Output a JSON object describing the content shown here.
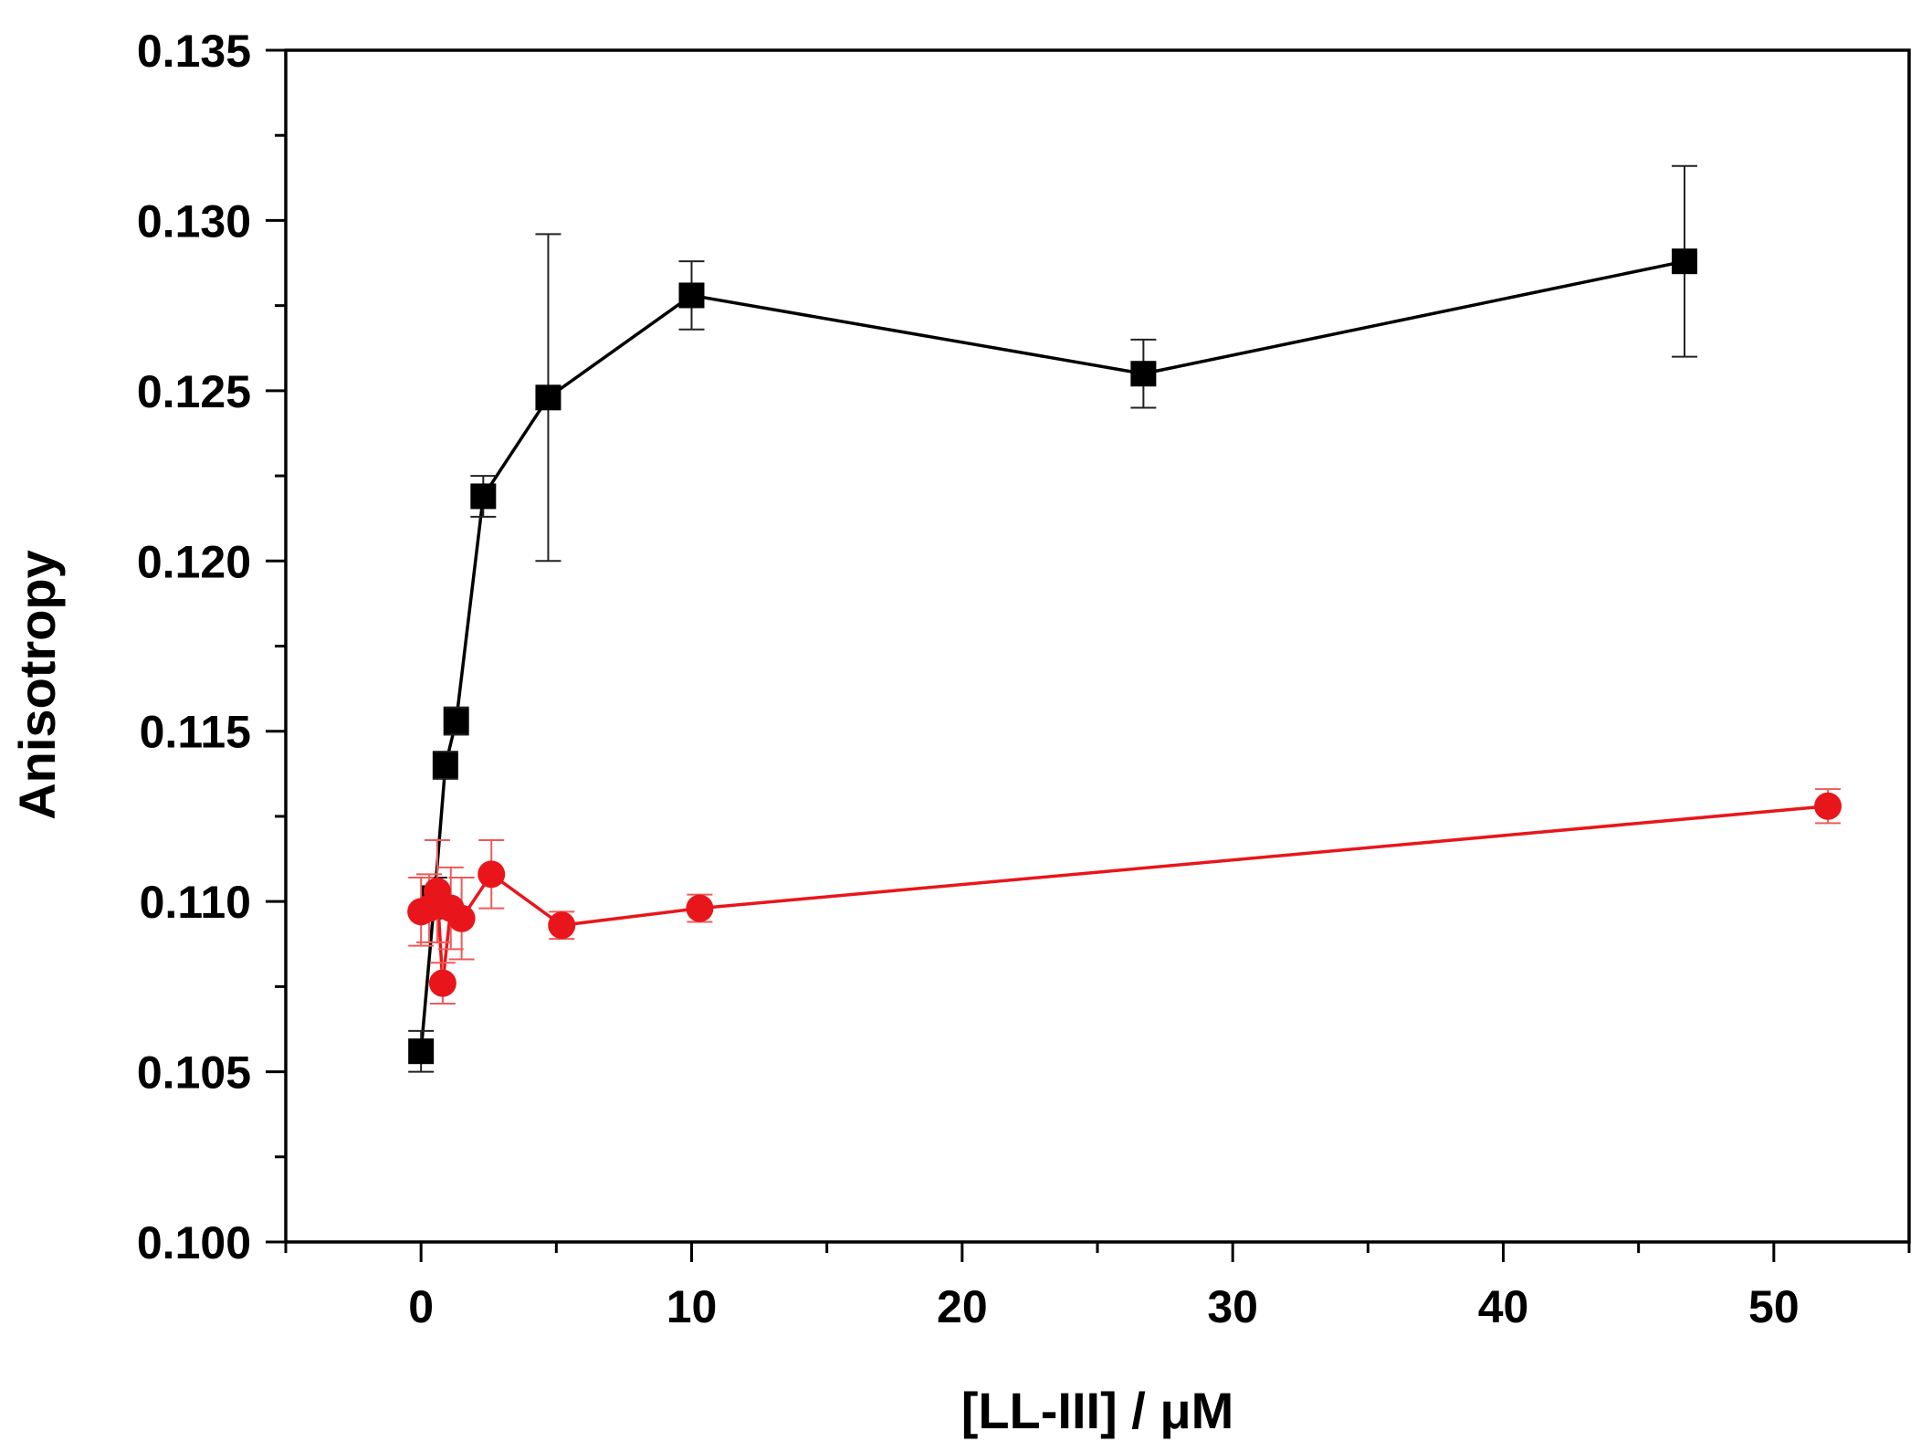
{
  "chart_data": {
    "type": "line",
    "title": "",
    "xlabel": "[LL-III] / μM",
    "ylabel": "Anisotropy",
    "xlim": [
      -5,
      55
    ],
    "ylim": [
      0.1,
      0.135
    ],
    "x_ticks": [
      0,
      10,
      20,
      30,
      40,
      50
    ],
    "x_tick_labels": [
      "0",
      "10",
      "20",
      "30",
      "40",
      "50"
    ],
    "x_minor_step": 5,
    "y_ticks": [
      0.1,
      0.105,
      0.11,
      0.115,
      0.12,
      0.125,
      0.13,
      0.135
    ],
    "y_tick_labels": [
      "0.100",
      "0.105",
      "0.110",
      "0.115",
      "0.120",
      "0.125",
      "0.130",
      "0.135"
    ],
    "y_minor_step": 0.0025,
    "grid": false,
    "legend": null,
    "series": [
      {
        "name": "black squares",
        "color": "#000000",
        "marker": "square",
        "x": [
          0,
          0.5,
          0.9,
          1.3,
          2.3,
          4.7,
          10.0,
          26.7,
          46.7
        ],
        "y": [
          0.1056,
          0.1101,
          0.114,
          0.1153,
          0.1219,
          0.1248,
          0.1278,
          0.1255,
          0.1288
        ],
        "err": [
          0.0006,
          0.0006,
          0.0004,
          0.0004,
          0.0006,
          0.0048,
          0.001,
          0.001,
          0.0028
        ]
      },
      {
        "name": "red circles",
        "color": "#e8161b",
        "marker": "circle",
        "x": [
          0,
          0.3,
          0.6,
          0.8,
          1.1,
          1.5,
          2.6,
          5.2,
          10.3,
          52.0
        ],
        "y": [
          0.1097,
          0.1098,
          0.1103,
          0.1076,
          0.1098,
          0.1095,
          0.1108,
          0.1093,
          0.1098,
          0.1128
        ],
        "err": [
          0.001,
          0.001,
          0.0015,
          0.0006,
          0.0012,
          0.0012,
          0.001,
          0.0004,
          0.0004,
          0.0005
        ]
      }
    ]
  }
}
